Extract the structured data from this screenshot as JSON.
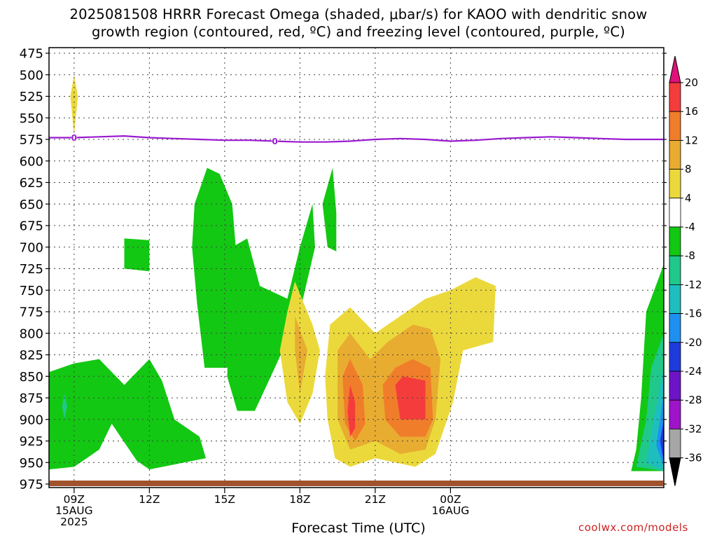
{
  "title_line1": "2025081508 HRRR Forecast Omega (shaded, μbar/s) for KAOO with dendritic snow",
  "title_line2": "growth region (contoured, red, ºC) and freezing level (contoured, purple, ºC)",
  "credit": "coolwx.com/models",
  "colors": {
    "freezing_line": "#9a1ad0",
    "ground": "#a0522d"
  },
  "chart_data": {
    "type": "heatmap",
    "xlabel": "Forecast Time (UTC)",
    "ylabel": "",
    "x_units": "hours since 08Z 15 Aug 2025",
    "xlim": [
      0,
      24.5
    ],
    "ylim": [
      975,
      475
    ],
    "y_ticks": [
      475,
      500,
      525,
      550,
      575,
      600,
      625,
      650,
      675,
      700,
      725,
      750,
      775,
      800,
      825,
      850,
      875,
      900,
      925,
      950,
      975
    ],
    "x_ticks": [
      {
        "x": 1,
        "lines": [
          "09Z",
          "15AUG",
          "2025"
        ]
      },
      {
        "x": 4,
        "lines": [
          "12Z"
        ]
      },
      {
        "x": 7,
        "lines": [
          "15Z"
        ]
      },
      {
        "x": 10,
        "lines": [
          "18Z"
        ]
      },
      {
        "x": 13,
        "lines": [
          "21Z"
        ]
      },
      {
        "x": 16,
        "lines": [
          "00Z",
          "16AUG"
        ]
      }
    ],
    "grid": true,
    "colorbar": {
      "levels": [
        20,
        16,
        12,
        8,
        4,
        -4,
        -8,
        -12,
        -16,
        -20,
        -24,
        -28,
        -32,
        -36
      ],
      "colors": [
        "#e0107a",
        "#f53c3c",
        "#f07d2a",
        "#e8ac30",
        "#ebd93c",
        "#ffffff",
        "#12c812",
        "#20c88c",
        "#1ebebe",
        "#1e90f0",
        "#1e3cdc",
        "#6e14c8",
        "#9e14c8",
        "#a6a6a6",
        "#000000"
      ]
    },
    "freezing_level": {
      "label": "0",
      "label_positions_x": [
        1,
        9
      ],
      "points": [
        [
          0,
          573
        ],
        [
          1,
          573
        ],
        [
          2,
          572
        ],
        [
          3,
          571
        ],
        [
          4,
          573
        ],
        [
          5,
          574
        ],
        [
          6,
          575
        ],
        [
          7,
          576
        ],
        [
          8,
          576
        ],
        [
          9,
          577
        ],
        [
          10,
          578
        ],
        [
          11,
          578
        ],
        [
          12,
          577
        ],
        [
          13,
          575
        ],
        [
          14,
          574
        ],
        [
          15,
          575
        ],
        [
          16,
          577
        ],
        [
          17,
          576
        ],
        [
          18,
          574
        ],
        [
          19,
          573
        ],
        [
          20,
          572
        ],
        [
          21,
          573
        ],
        [
          22,
          574
        ],
        [
          23,
          575
        ],
        [
          24,
          575
        ],
        [
          24.5,
          575
        ]
      ]
    },
    "omega_regions": [
      {
        "value": 4,
        "points": [
          [
            1,
            500
          ],
          [
            0.85,
            525
          ],
          [
            1,
            570
          ],
          [
            1.15,
            525
          ]
        ]
      },
      {
        "value": -4,
        "points": [
          [
            0,
            845
          ],
          [
            1,
            835
          ],
          [
            2,
            830
          ],
          [
            3,
            860
          ],
          [
            4,
            830
          ],
          [
            4.5,
            855
          ],
          [
            5,
            900
          ],
          [
            6,
            920
          ],
          [
            6.25,
            945
          ],
          [
            4,
            958
          ],
          [
            3.5,
            948
          ],
          [
            2.5,
            905
          ],
          [
            2,
            935
          ],
          [
            1,
            955
          ],
          [
            0,
            958
          ]
        ]
      },
      {
        "value": -4,
        "points": [
          [
            3,
            690
          ],
          [
            4,
            692
          ],
          [
            4,
            728
          ],
          [
            3,
            725
          ]
        ]
      },
      {
        "value": -4,
        "points": [
          [
            6.8,
            615
          ],
          [
            7.3,
            650
          ],
          [
            7.5,
            720
          ],
          [
            7.5,
            775
          ],
          [
            7.5,
            840
          ],
          [
            6.2,
            840
          ],
          [
            5.9,
            765
          ],
          [
            5.7,
            700
          ],
          [
            5.8,
            650
          ],
          [
            6.3,
            608
          ]
        ]
      },
      {
        "value": -4,
        "points": [
          [
            7.3,
            700
          ],
          [
            7.9,
            690
          ],
          [
            8.4,
            745
          ],
          [
            9.5,
            760
          ],
          [
            10,
            700
          ],
          [
            10.5,
            650
          ],
          [
            10.6,
            700
          ],
          [
            10,
            775
          ],
          [
            9,
            840
          ],
          [
            8.2,
            890
          ],
          [
            7.5,
            890
          ],
          [
            7.1,
            850
          ]
        ]
      },
      {
        "value": -4,
        "points": [
          [
            11.3,
            608
          ],
          [
            11.45,
            660
          ],
          [
            11.45,
            705
          ],
          [
            11.1,
            700
          ],
          [
            10.9,
            650
          ]
        ]
      },
      {
        "value": -4,
        "points": [
          [
            24.5,
            720
          ],
          [
            24.5,
            960
          ],
          [
            23.2,
            960
          ],
          [
            23.4,
            935
          ],
          [
            23.6,
            875
          ],
          [
            23.8,
            775
          ]
        ]
      },
      {
        "value": -8,
        "points": [
          [
            24.5,
            800
          ],
          [
            24.5,
            960
          ],
          [
            23.4,
            955
          ],
          [
            23.8,
            900
          ],
          [
            24,
            840
          ]
        ]
      },
      {
        "value": -8,
        "points": [
          [
            0.62,
            870
          ],
          [
            0.72,
            885
          ],
          [
            0.62,
            900
          ],
          [
            0.52,
            885
          ]
        ]
      },
      {
        "value": -12,
        "points": [
          [
            24.5,
            840
          ],
          [
            24.5,
            960
          ],
          [
            23.8,
            950
          ],
          [
            24.1,
            900
          ]
        ]
      },
      {
        "value": -16,
        "points": [
          [
            24.5,
            870
          ],
          [
            24.5,
            955
          ],
          [
            24.2,
            930
          ]
        ]
      },
      {
        "value": -20,
        "points": [
          [
            24.5,
            900
          ],
          [
            24.5,
            950
          ],
          [
            24.35,
            925
          ]
        ]
      },
      {
        "value": 4,
        "points": [
          [
            9.8,
            740
          ],
          [
            10.5,
            790
          ],
          [
            10.8,
            820
          ],
          [
            10.5,
            870
          ],
          [
            10,
            905
          ],
          [
            9.5,
            880
          ],
          [
            9.2,
            820
          ],
          [
            9.5,
            775
          ]
        ]
      },
      {
        "value": 4,
        "points": [
          [
            11.2,
            790
          ],
          [
            12,
            770
          ],
          [
            13,
            800
          ],
          [
            14,
            780
          ],
          [
            15,
            760
          ],
          [
            16,
            750
          ],
          [
            17,
            735
          ],
          [
            17.8,
            745
          ],
          [
            17.7,
            810
          ],
          [
            16.5,
            820
          ],
          [
            16.1,
            880
          ],
          [
            15.4,
            940
          ],
          [
            14.6,
            955
          ],
          [
            13.8,
            950
          ],
          [
            13,
            945
          ],
          [
            12,
            955
          ],
          [
            11.4,
            945
          ],
          [
            11.1,
            900
          ],
          [
            11,
            850
          ]
        ]
      },
      {
        "value": 8,
        "points": [
          [
            9.8,
            780
          ],
          [
            10.3,
            820
          ],
          [
            10,
            870
          ],
          [
            9.8,
            820
          ]
        ]
      },
      {
        "value": 8,
        "points": [
          [
            11.5,
            820
          ],
          [
            12,
            800
          ],
          [
            12.8,
            830
          ],
          [
            13.5,
            810
          ],
          [
            14.5,
            790
          ],
          [
            15.2,
            795
          ],
          [
            15.6,
            830
          ],
          [
            15.4,
            900
          ],
          [
            15,
            935
          ],
          [
            14,
            940
          ],
          [
            13,
            925
          ],
          [
            12,
            935
          ],
          [
            11.5,
            900
          ]
        ]
      },
      {
        "value": 12,
        "points": [
          [
            11.7,
            850
          ],
          [
            12,
            830
          ],
          [
            12.5,
            860
          ],
          [
            12.6,
            905
          ],
          [
            12.2,
            925
          ],
          [
            11.8,
            905
          ]
        ]
      },
      {
        "value": 12,
        "points": [
          [
            13.3,
            860
          ],
          [
            13.8,
            840
          ],
          [
            14.5,
            830
          ],
          [
            15.2,
            840
          ],
          [
            15.3,
            900
          ],
          [
            15,
            920
          ],
          [
            14,
            920
          ],
          [
            13.4,
            900
          ]
        ]
      },
      {
        "value": 16,
        "points": [
          [
            12,
            860
          ],
          [
            12.2,
            880
          ],
          [
            12.2,
            910
          ],
          [
            12,
            920
          ],
          [
            11.9,
            890
          ]
        ]
      },
      {
        "value": 16,
        "points": [
          [
            13.8,
            860
          ],
          [
            14.1,
            850
          ],
          [
            15,
            855
          ],
          [
            15,
            900
          ],
          [
            14,
            900
          ]
        ]
      }
    ]
  }
}
